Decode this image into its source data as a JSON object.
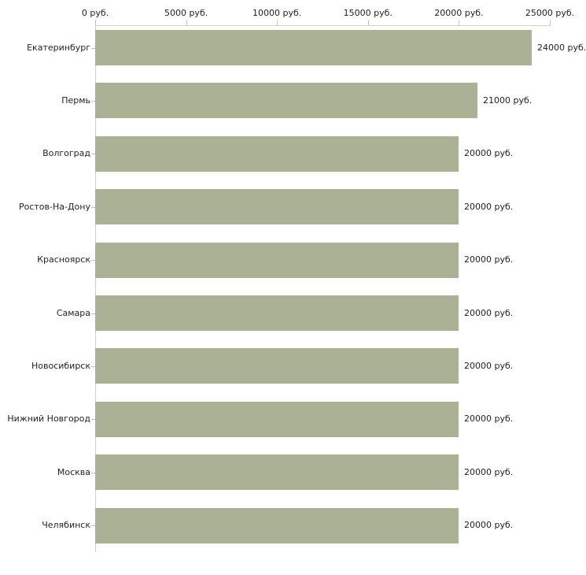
{
  "chart_data": {
    "type": "bar",
    "orientation": "horizontal",
    "title": "",
    "categories": [
      "Екатеринбург",
      "Пермь",
      "Волгоград",
      "Ростов-На-Дону",
      "Красноярск",
      "Самара",
      "Новосибирск",
      "Нижний Новгород",
      "Москва",
      "Челябинск"
    ],
    "values": [
      24000,
      21000,
      20000,
      20000,
      20000,
      20000,
      20000,
      20000,
      20000,
      20000
    ],
    "value_labels": [
      "24000 руб.",
      "21000 руб.",
      "20000 руб.",
      "20000 руб.",
      "20000 руб.",
      "20000 руб.",
      "20000 руб.",
      "20000 руб.",
      "20000 руб.",
      "20000 руб."
    ],
    "x_axis": {
      "position": "top",
      "min": 0,
      "max": 25000,
      "ticks": [
        0,
        5000,
        10000,
        15000,
        20000,
        25000
      ],
      "tick_labels": [
        "0 руб.",
        "5000 руб.",
        "10000 руб.",
        "15000 руб.",
        "20000 руб.",
        "25000 руб."
      ]
    },
    "grid": false,
    "legend": false,
    "colors": {
      "bar": "#abb194",
      "x_axis_line": "#d4d4c2",
      "x_tick": "#c7c7ab",
      "y_axis_line": "#cccccc",
      "y_tick": "#c2c2b0",
      "text": "#1f1f1f",
      "background": "#ffffff"
    }
  }
}
